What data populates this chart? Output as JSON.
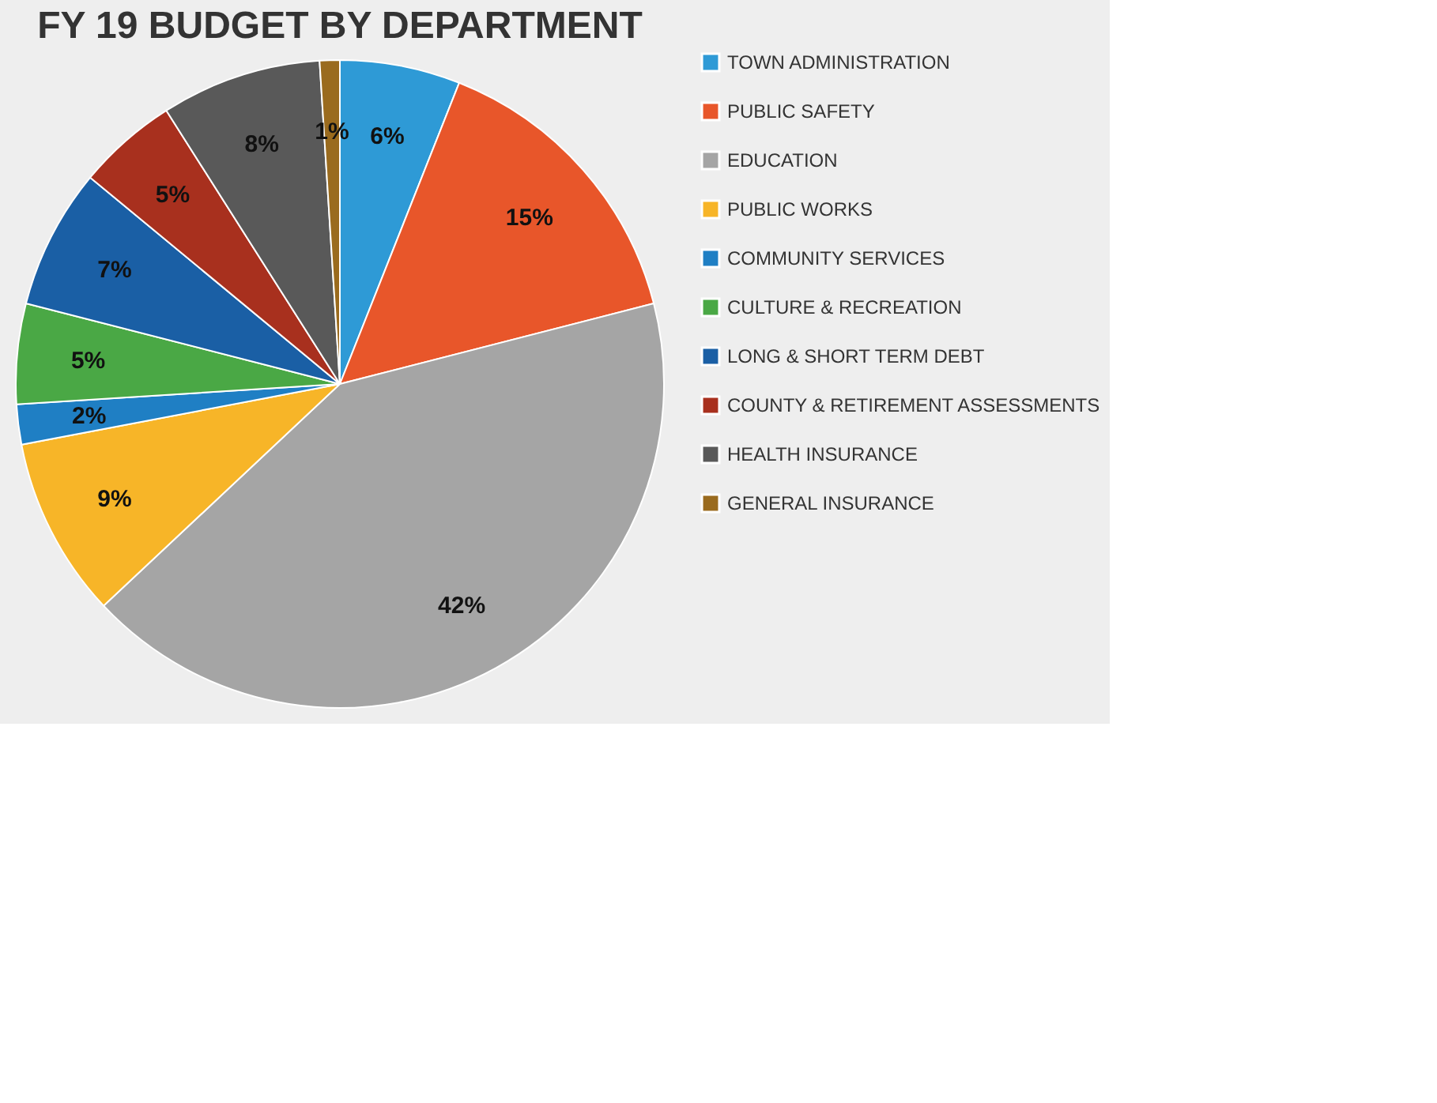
{
  "chart_data": {
    "type": "pie",
    "title": "FY 19 BUDGET BY DEPARTMENT",
    "categories": [
      "TOWN ADMINISTRATION",
      "PUBLIC SAFETY",
      "EDUCATION",
      "PUBLIC WORKS",
      "COMMUNITY SERVICES",
      "CULTURE & RECREATION",
      "LONG & SHORT TERM DEBT",
      "COUNTY & RETIREMENT ASSESSMENTS",
      "HEALTH INSURANCE",
      "GENERAL INSURANCE"
    ],
    "values": [
      6,
      15,
      42,
      9,
      2,
      5,
      7,
      5,
      8,
      1
    ],
    "colors": [
      "#2e9ad6",
      "#e8562a",
      "#a5a5a5",
      "#f7b528",
      "#1f7fc4",
      "#4aa845",
      "#1a5fa5",
      "#a8301e",
      "#595959",
      "#9a6b1e"
    ],
    "value_labels": [
      "6%",
      "15%",
      "42%",
      "9%",
      "2%",
      "5%",
      "7%",
      "5%",
      "8%",
      "1%"
    ],
    "legend": "right"
  }
}
